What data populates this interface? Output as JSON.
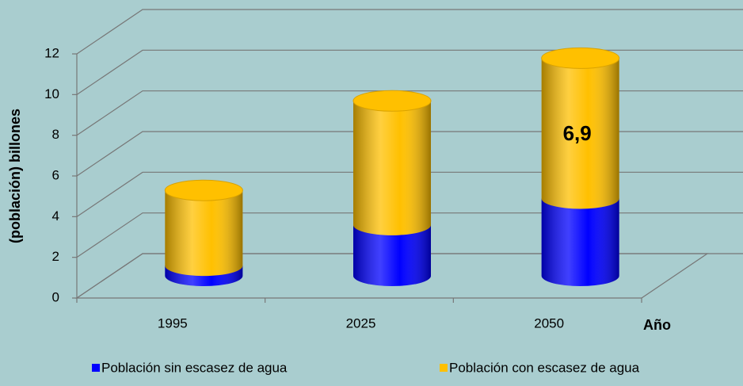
{
  "chart_data": {
    "type": "bar3d_stacked",
    "categories": [
      "1995",
      "2025",
      "2050"
    ],
    "series": [
      {
        "name": "Población sin escasez de agua",
        "color": "#0000ff",
        "values": [
          0.5,
          2.5,
          3.8
        ]
      },
      {
        "name": "Población con escasez de agua",
        "color": "#ffc000",
        "values": [
          3.7,
          6.1,
          6.9
        ],
        "value_labels": [
          null,
          null,
          "6,9"
        ]
      }
    ],
    "y_label": "(población) billones",
    "x_label": "Año",
    "ylim": [
      0,
      12
    ],
    "yticks": [
      0,
      2,
      4,
      6,
      8,
      10,
      12
    ],
    "grid": true,
    "legend": "bottom"
  }
}
